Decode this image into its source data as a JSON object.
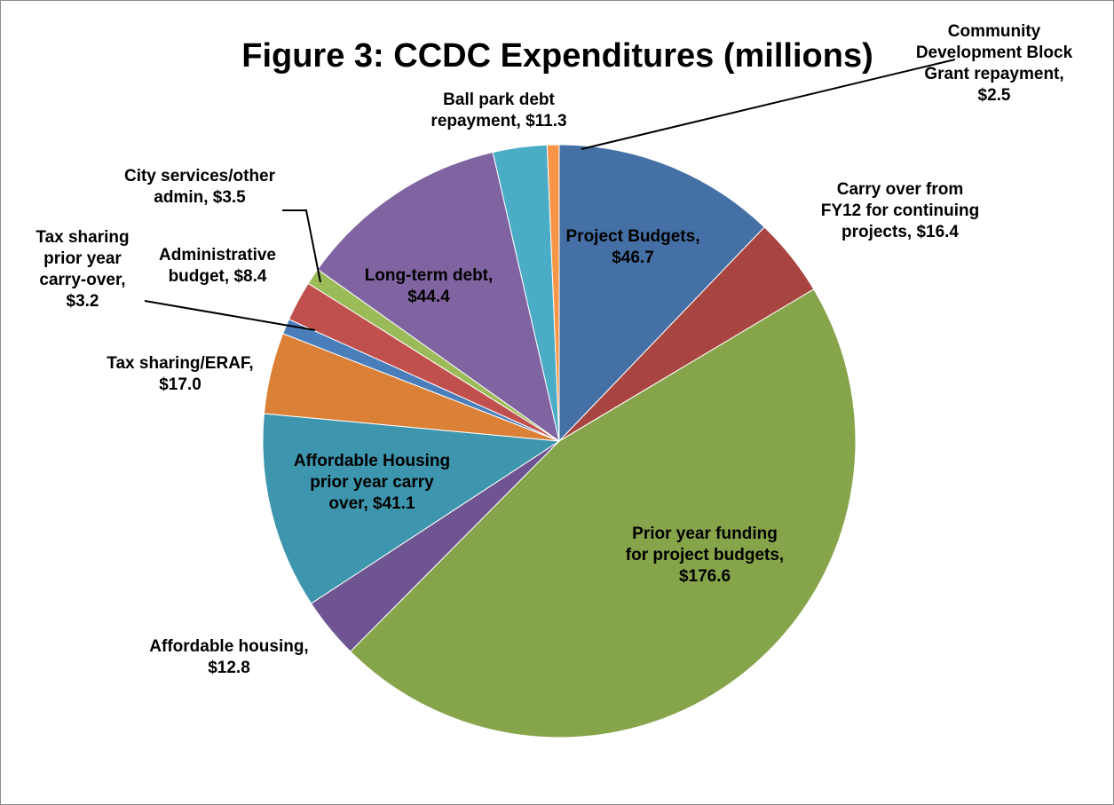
{
  "chart_data": {
    "type": "pie",
    "title": "Figure 3: CCDC Expenditures (millions)",
    "start_angle_deg": 0,
    "direction": "clockwise",
    "legend": "none",
    "slices": [
      {
        "name": "Project Budgets",
        "value": 46.7,
        "color": "#4470A5",
        "label_lines": [
          "Project Budgets,",
          "$46.7"
        ]
      },
      {
        "name": "Carry over from FY12 for continuing projects",
        "value": 16.4,
        "color": "#A94541",
        "label_lines": [
          "Carry over from",
          "FY12 for continuing",
          "projects, $16.4"
        ]
      },
      {
        "name": "Prior year funding for project budgets",
        "value": 176.6,
        "color": "#86A44A",
        "label_lines": [
          "Prior year funding",
          "for project budgets,",
          "$176.6"
        ]
      },
      {
        "name": "Affordable housing",
        "value": 12.8,
        "color": "#6E5591",
        "label_lines": [
          "Affordable housing,",
          "$12.8"
        ]
      },
      {
        "name": "Affordable Housing prior year carry over",
        "value": 41.1,
        "color": "#3D96AE",
        "label_lines": [
          "Affordable Housing",
          "prior year carry",
          "over, $41.1"
        ]
      },
      {
        "name": "Tax sharing/ERAF",
        "value": 17.0,
        "color": "#DA8137",
        "label_lines": [
          "Tax sharing/ERAF,",
          "$17.0"
        ]
      },
      {
        "name": "Tax sharing prior year carry-over",
        "value": 3.2,
        "color": "#4A7EBB",
        "label_lines": [
          "Tax sharing",
          "prior year",
          "carry-over,",
          "$3.2"
        ]
      },
      {
        "name": "Administrative budget",
        "value": 8.4,
        "color": "#C0504D",
        "label_lines": [
          "Administrative",
          "budget, $8.4"
        ]
      },
      {
        "name": "City services/other admin",
        "value": 3.5,
        "color": "#9BBB59",
        "label_lines": [
          "City services/other",
          "admin, $3.5"
        ]
      },
      {
        "name": "Long-term debt",
        "value": 44.4,
        "color": "#8064A2",
        "label_lines": [
          "Long-term debt,",
          "$44.4"
        ]
      },
      {
        "name": "Ball park debt repayment",
        "value": 11.3,
        "color": "#4BACC6",
        "label_lines": [
          "Ball park debt",
          "repayment, $11.3"
        ]
      },
      {
        "name": "Community Development Block Grant repayment",
        "value": 2.5,
        "color": "#F79646",
        "label_lines": [
          "Community",
          "Development Block",
          "Grant repayment,",
          "$2.5"
        ]
      }
    ]
  }
}
